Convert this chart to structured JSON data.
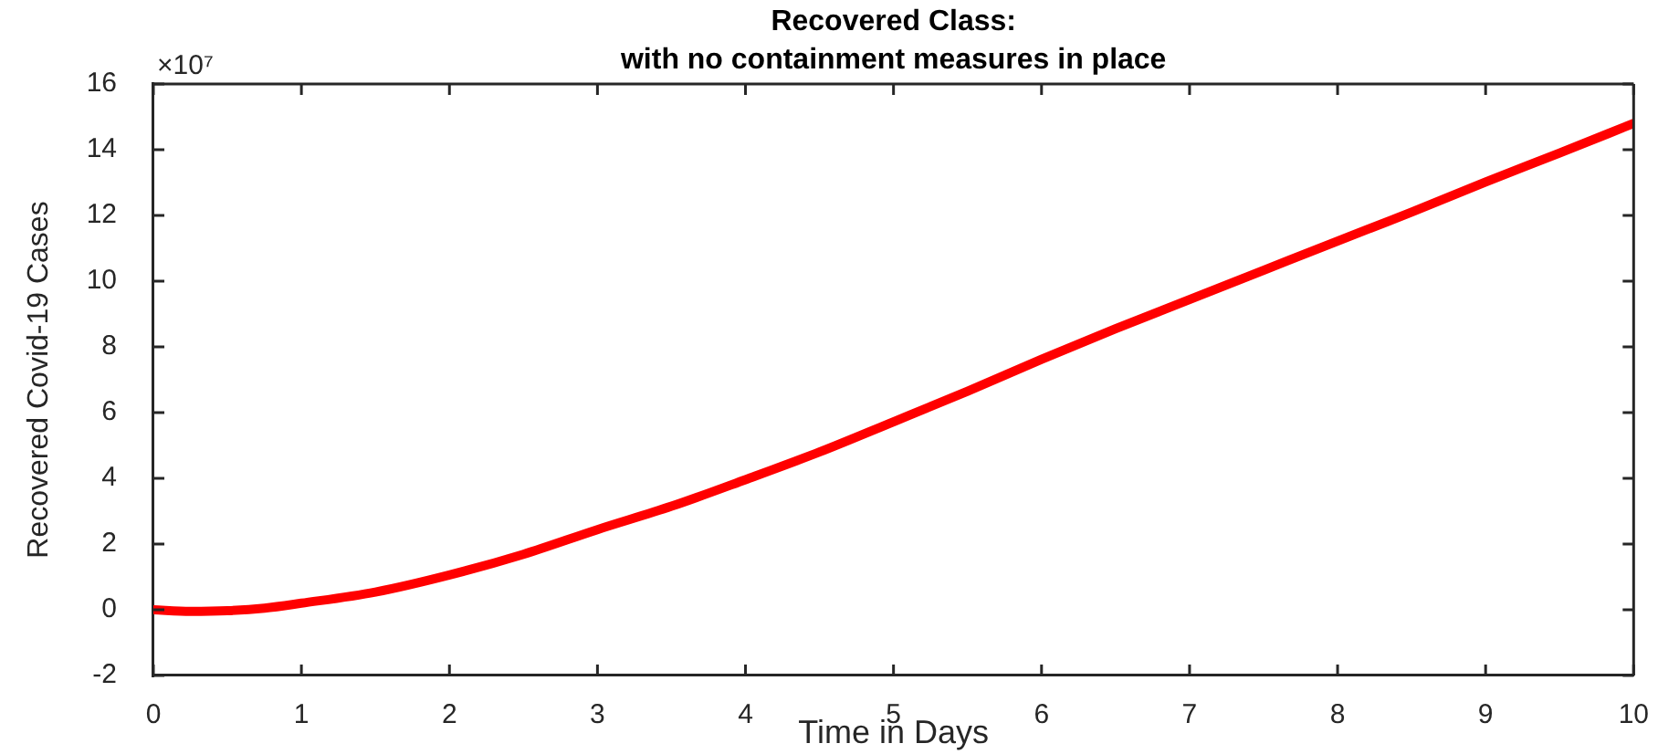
{
  "chart_data": {
    "type": "line",
    "title": "Recovered Class:",
    "subtitle": "with no containment measures in place",
    "xlabel": "Time in Days",
    "ylabel": "Recovered Covid-19 Cases",
    "annotations": [
      "×10⁷"
    ],
    "x": [
      0,
      0.25,
      0.5,
      0.75,
      1,
      1.5,
      2,
      2.5,
      3,
      3.5,
      4,
      4.5,
      5,
      5.5,
      6,
      6.5,
      7,
      7.5,
      8,
      8.5,
      9,
      9.5,
      10
    ],
    "series": [
      {
        "color": "#ff0000",
        "values": [
          0,
          -0.05,
          -0.03,
          0.05,
          0.2,
          0.54,
          1.06,
          1.69,
          2.44,
          3.15,
          3.96,
          4.8,
          5.72,
          6.65,
          7.62,
          8.55,
          9.44,
          10.33,
          11.22,
          12.1,
          13.02,
          13.9,
          14.8
        ]
      }
    ],
    "xlim": [
      0,
      10
    ],
    "ylim": [
      -2,
      16
    ],
    "xticks": [
      0,
      1,
      2,
      3,
      4,
      5,
      6,
      7,
      8,
      9,
      10
    ],
    "yticks": [
      -2,
      0,
      2,
      4,
      6,
      8,
      10,
      12,
      14,
      16
    ],
    "marker": "none",
    "line_style": "solid"
  }
}
